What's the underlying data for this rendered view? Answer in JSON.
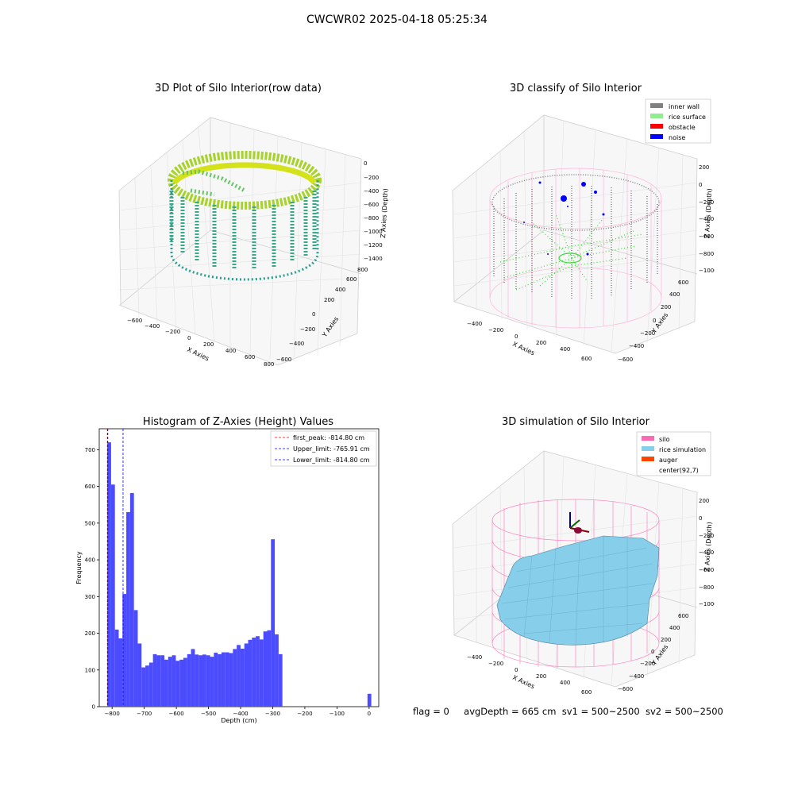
{
  "figure": {
    "title": "CWCWR02 2025-04-18 05:25:34",
    "status": {
      "flag": "flag = 0",
      "avg_depth": "avgDepth = 665 cm",
      "sv1": "sv1 = 500~2500",
      "sv2": "sv2 = 500~2500"
    }
  },
  "colors": {
    "inner_wall": "#808080",
    "rice_surface": "#90ee90",
    "obstacle": "#ff0000",
    "noise": "#0000ff",
    "silo": "#ff69b4",
    "rice_simulation": "#87ceeb",
    "auger": "#ff4500",
    "hist_bar": "#4b4bff",
    "peak_line": "#ff0000",
    "limit_line": "#0000ff"
  },
  "chart_data": [
    {
      "type": "scatter3d",
      "title": "3D Plot of Silo Interior(row data)",
      "xlabel": "X Axies",
      "ylabel": "Y Axies",
      "zlabel": "Z Axies (Depth)",
      "x_ticks": [
        "−600",
        "−400",
        "−200",
        "0",
        "200",
        "400",
        "600",
        "800"
      ],
      "y_ticks": [
        "−600",
        "−400",
        "−200",
        "0",
        "200",
        "400",
        "600",
        "800"
      ],
      "z_ticks": [
        "0",
        "−200",
        "−400",
        "−600",
        "−800",
        "−1000",
        "−1200",
        "−1400"
      ],
      "xlim": [
        -750,
        800
      ],
      "ylim": [
        -700,
        800
      ],
      "zlim": [
        -1450,
        50
      ],
      "colormap": "viridis"
    },
    {
      "type": "scatter3d",
      "title": "3D classify of Silo Interior",
      "xlabel": "X Axies",
      "ylabel": "Y Axies",
      "zlabel": "Z Axies (Depth)",
      "x_ticks": [
        "−400",
        "−200",
        "0",
        "200",
        "400",
        "600"
      ],
      "y_ticks": [
        "−600",
        "−400",
        "−200",
        "0",
        "200",
        "400",
        "600"
      ],
      "z_ticks": [
        "200",
        "0",
        "−200",
        "−400",
        "−600",
        "−800",
        "−1000"
      ],
      "xlim": [
        -500,
        700
      ],
      "ylim": [
        -650,
        650
      ],
      "zlim": [
        -1050,
        250
      ],
      "legend": {
        "location": "upper right",
        "entries": [
          "inner wall",
          "rice surface",
          "obstacle",
          "noise"
        ]
      }
    },
    {
      "type": "bar",
      "title": "Histogram of Z-Axies (Height) Values",
      "xlabel": "Depth (cm)",
      "ylabel": "Frequency",
      "xlim": [
        -840,
        30
      ],
      "ylim": [
        0,
        757
      ],
      "x_ticks": [
        "−800",
        "−700",
        "−600",
        "−500",
        "−400",
        "−300",
        "−200",
        "−100",
        "0"
      ],
      "y_ticks": [
        "0",
        "100",
        "200",
        "300",
        "400",
        "500",
        "600",
        "700"
      ],
      "bin_start": -815,
      "bin_width": 11.85,
      "values": [
        720,
        605,
        210,
        186,
        307,
        530,
        582,
        263,
        172,
        107,
        112,
        120,
        143,
        140,
        140,
        128,
        136,
        140,
        125,
        128,
        133,
        143,
        157,
        142,
        140,
        142,
        140,
        136,
        147,
        143,
        148,
        148,
        146,
        157,
        168,
        158,
        172,
        182,
        188,
        192,
        183,
        205,
        208,
        456,
        197,
        143,
        0,
        0,
        0,
        0,
        0,
        0,
        0,
        0,
        0,
        0,
        0,
        0,
        0,
        0,
        0,
        0,
        0,
        0,
        0,
        0,
        0,
        0,
        0,
        0,
        0,
        0,
        0,
        0,
        0,
        0,
        0,
        0,
        0,
        0,
        0,
        0,
        0,
        0,
        0,
        0,
        0,
        0,
        0,
        0,
        0,
        0,
        0,
        0
      ],
      "extra_bar": {
        "x": -5,
        "width": 11.85,
        "value": 35
      },
      "vlines": [
        {
          "label": "first_peak: -814.80 cm",
          "x": -814.8,
          "style": "dashed",
          "color": "#ff0000"
        },
        {
          "label": "Upper_limit: -765.91 cm",
          "x": -765.91,
          "style": "dashed",
          "color": "#0000ff"
        },
        {
          "label": "Lower_limit: -814.80 cm",
          "x": -814.8,
          "style": "dashed",
          "color": "#0000ff"
        }
      ],
      "legend": {
        "location": "upper right"
      }
    },
    {
      "type": "surface3d",
      "title": "3D simulation of Silo Interior",
      "xlabel": "X Axies",
      "ylabel": "Y Axies",
      "zlabel": "Z Axies (Depth)",
      "x_ticks": [
        "−400",
        "−200",
        "0",
        "200",
        "400",
        "600"
      ],
      "y_ticks": [
        "−600",
        "−400",
        "−200",
        "0",
        "200",
        "400",
        "600"
      ],
      "z_ticks": [
        "200",
        "0",
        "−200",
        "−400",
        "−600",
        "−800",
        "−1000"
      ],
      "xlim": [
        -500,
        700
      ],
      "ylim": [
        -650,
        650
      ],
      "zlim": [
        -1050,
        250
      ],
      "legend": {
        "location": "upper right",
        "entries": [
          "silo",
          "rice simulation",
          "auger",
          "center(92,7)"
        ]
      }
    }
  ]
}
